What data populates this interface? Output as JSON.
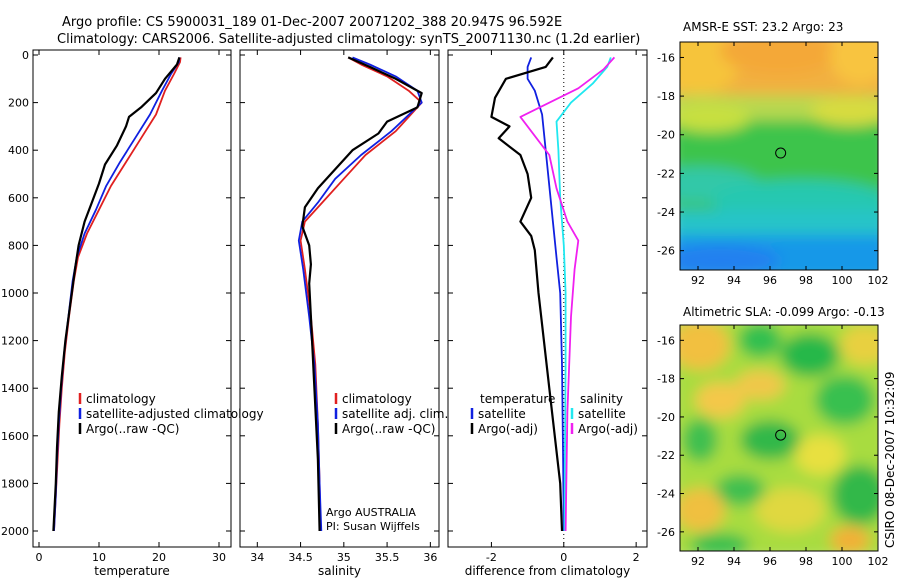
{
  "header": {
    "line1": "Argo profile: CS 5900031_189 01-Dec-2007 20071202_388 20.947S 96.592E",
    "line2": "Climatology: CARS2006. Satellite-adjusted climatology: synTS_20071130.nc (1.2d earlier)"
  },
  "side_label": "CSIRO 08-Dec-2007 10:32:09",
  "colors": {
    "climatology": "#e02020",
    "satellite": "#1020e0",
    "argo": "#000000",
    "satellite_salinity": "#20e8f0",
    "argo_adj_salinity": "#f020f0"
  },
  "chart_data": [
    {
      "type": "line",
      "id": "temperature",
      "xlabel": "temperature",
      "ylabel": "",
      "xlim": [
        -1,
        32
      ],
      "ylim": [
        2050,
        0
      ],
      "xticks": [
        0,
        10,
        20,
        30
      ],
      "yticks": [
        0,
        200,
        400,
        600,
        800,
        1000,
        1200,
        1400,
        1600,
        1800,
        2000
      ],
      "legend": [
        "climatology",
        "satellite-adjusted climatology",
        "Argo(..raw -QC)"
      ],
      "series": [
        {
          "name": "climatology",
          "color": "#e02020",
          "x": [
            23.6,
            23.5,
            22.5,
            21.0,
            19.5,
            17.0,
            14.5,
            12.0,
            10.0,
            8.0,
            6.5,
            5.8,
            5.0,
            4.3,
            3.8,
            3.4,
            3.1,
            2.8,
            2.6,
            2.5
          ],
          "y": [
            10,
            30,
            80,
            150,
            250,
            350,
            450,
            550,
            650,
            750,
            850,
            950,
            1100,
            1250,
            1400,
            1550,
            1700,
            1850,
            1950,
            2000
          ]
        },
        {
          "name": "satellite-adjusted climatology",
          "color": "#1020e0",
          "x": [
            23.4,
            23.3,
            22.0,
            20.5,
            18.5,
            16.0,
            13.5,
            11.2,
            9.5,
            7.6,
            6.3,
            5.6,
            4.9,
            4.2,
            3.7,
            3.3,
            3.0,
            2.8,
            2.6,
            2.5
          ],
          "y": [
            10,
            30,
            80,
            150,
            250,
            350,
            450,
            550,
            650,
            750,
            850,
            950,
            1100,
            1250,
            1400,
            1550,
            1700,
            1850,
            1950,
            2000
          ]
        },
        {
          "name": "Argo(..raw -QC)",
          "color": "#000000",
          "x": [
            23.4,
            23.0,
            21.0,
            19.5,
            17.0,
            15.0,
            14.5,
            13.0,
            11.0,
            10.0,
            8.8,
            7.6,
            6.6,
            6.0,
            5.2,
            4.4,
            3.8,
            3.3,
            3.0,
            2.8,
            2.5,
            2.4
          ],
          "y": [
            10,
            40,
            100,
            160,
            220,
            260,
            300,
            380,
            460,
            540,
            620,
            700,
            800,
            900,
            1050,
            1200,
            1350,
            1500,
            1650,
            1800,
            1950,
            2000
          ]
        }
      ]
    },
    {
      "type": "line",
      "id": "salinity",
      "xlabel": "salinity",
      "ylabel": "",
      "xlim": [
        33.8,
        36.1
      ],
      "ylim": [
        2050,
        0
      ],
      "xticks": [
        34,
        34.5,
        35,
        35.5,
        36
      ],
      "legend": [
        "climatology",
        "satellite adj. clim.",
        "Argo(..raw -QC)"
      ],
      "annotation": [
        "Argo AUSTRALIA",
        "PI: Susan Wijffels"
      ],
      "series": [
        {
          "name": "climatology",
          "color": "#e02020",
          "x": [
            35.05,
            35.2,
            35.5,
            35.75,
            35.9,
            35.6,
            35.25,
            35.0,
            34.75,
            34.55,
            34.5,
            34.55,
            34.62,
            34.67,
            34.7,
            34.72,
            34.73
          ],
          "y": [
            10,
            40,
            90,
            150,
            200,
            320,
            420,
            520,
            620,
            700,
            780,
            900,
            1100,
            1300,
            1550,
            1800,
            2000
          ]
        },
        {
          "name": "satellite adj. clim.",
          "color": "#1020e0",
          "x": [
            35.1,
            35.3,
            35.6,
            35.85,
            35.9,
            35.55,
            35.2,
            34.9,
            34.7,
            34.52,
            34.48,
            34.53,
            34.6,
            34.66,
            34.7,
            34.72,
            34.74
          ],
          "y": [
            10,
            40,
            90,
            150,
            200,
            320,
            420,
            520,
            620,
            700,
            780,
            900,
            1100,
            1300,
            1550,
            1800,
            2000
          ]
        },
        {
          "name": "Argo(..raw -QC)",
          "color": "#000000",
          "x": [
            35.05,
            35.3,
            35.6,
            35.9,
            35.85,
            35.5,
            35.4,
            35.1,
            34.9,
            34.7,
            34.55,
            34.52,
            34.6,
            34.62,
            34.6,
            34.62,
            34.66,
            34.7,
            34.72
          ],
          "y": [
            10,
            50,
            100,
            160,
            220,
            280,
            330,
            400,
            480,
            560,
            640,
            720,
            800,
            880,
            960,
            1100,
            1400,
            1700,
            2000
          ]
        }
      ]
    },
    {
      "type": "line",
      "id": "difference",
      "xlabel": "difference from climatology",
      "ylabel": "",
      "xlim": [
        -3.2,
        2.3
      ],
      "ylim": [
        2050,
        0
      ],
      "xticks": [
        -2,
        0,
        2
      ],
      "legend": [
        "temperature",
        "satellite",
        "Argo(-adj)",
        "salinity",
        "satellite",
        "Argo(-adj)"
      ],
      "series": [
        {
          "name": "temperature satellite",
          "color": "#1020e0",
          "x": [
            -0.9,
            -1.0,
            -1.0,
            -0.8,
            -0.6,
            -0.5,
            -0.4,
            -0.3,
            -0.2,
            -0.1,
            -0.05,
            -0.02,
            0.0
          ],
          "y": [
            10,
            50,
            100,
            150,
            250,
            400,
            550,
            700,
            850,
            1000,
            1300,
            1700,
            2000
          ]
        },
        {
          "name": "temperature Argo(-adj)",
          "color": "#000000",
          "x": [
            -0.3,
            -0.5,
            -1.6,
            -1.9,
            -2.0,
            -1.5,
            -1.8,
            -1.2,
            -1.0,
            -0.9,
            -1.2,
            -0.9,
            -0.8,
            -0.7,
            -0.4,
            -0.1,
            -0.05
          ],
          "y": [
            10,
            50,
            100,
            180,
            260,
            300,
            350,
            420,
            500,
            600,
            700,
            760,
            820,
            1000,
            1400,
            1800,
            2000
          ]
        },
        {
          "name": "salinity satellite",
          "color": "#20e8f0",
          "x": [
            1.3,
            1.2,
            0.8,
            0.2,
            -0.2,
            -0.15,
            -0.1,
            0.0,
            0.05,
            0.05,
            0.03,
            0.02
          ],
          "y": [
            10,
            50,
            120,
            200,
            280,
            400,
            600,
            800,
            1000,
            1300,
            1700,
            2000
          ]
        },
        {
          "name": "salinity Argo(-adj)",
          "color": "#f020f0",
          "x": [
            1.4,
            1.1,
            0.4,
            -1.2,
            -0.9,
            -0.4,
            -0.2,
            0.1,
            0.4,
            0.3,
            0.2,
            0.1,
            0.05
          ],
          "y": [
            10,
            60,
            140,
            260,
            320,
            420,
            560,
            700,
            780,
            900,
            1100,
            1500,
            2000
          ]
        }
      ]
    },
    {
      "type": "heatmap",
      "id": "sst-map",
      "title": "AMSR-E SST: 23.2 Argo: 23",
      "xlim": [
        91,
        102
      ],
      "ylim": [
        -27,
        -15.2
      ],
      "xticks": [
        92,
        94,
        96,
        98,
        100,
        102
      ],
      "yticks": [
        -16,
        -18,
        -20,
        -22,
        -24,
        -26
      ],
      "marker": {
        "x": 96.592,
        "y": -20.947
      }
    },
    {
      "type": "heatmap",
      "id": "sla-map",
      "title": "Altimetric SLA: -0.099 Argo: -0.13",
      "xlim": [
        91,
        102
      ],
      "ylim": [
        -27,
        -15.2
      ],
      "xticks": [
        92,
        94,
        96,
        98,
        100,
        102
      ],
      "yticks": [
        -16,
        -18,
        -20,
        -22,
        -24,
        -26
      ],
      "marker": {
        "x": 96.592,
        "y": -20.947
      }
    }
  ]
}
